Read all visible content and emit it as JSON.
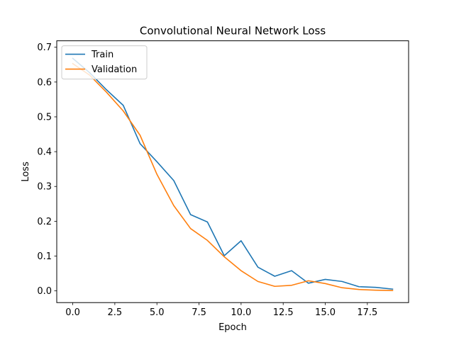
{
  "chart_data": {
    "type": "line",
    "title": "Convolutional Neural Network Loss",
    "xlabel": "Epoch",
    "ylabel": "Loss",
    "xlim": [
      -0.95,
      19.95
    ],
    "ylim": [
      -0.0337,
      0.7185
    ],
    "xticks": [
      0.0,
      2.5,
      5.0,
      7.5,
      10.0,
      12.5,
      15.0,
      17.5
    ],
    "xtick_labels": [
      "0.0",
      "2.5",
      "5.0",
      "7.5",
      "10.0",
      "12.5",
      "15.0",
      "17.5"
    ],
    "yticks": [
      0.0,
      0.1,
      0.2,
      0.3,
      0.4,
      0.5,
      0.6,
      0.7
    ],
    "ytick_labels": [
      "0.0",
      "0.1",
      "0.2",
      "0.3",
      "0.4",
      "0.5",
      "0.6",
      "0.7"
    ],
    "grid": false,
    "legend_position": "upper-left",
    "x": [
      0,
      1,
      2,
      3,
      4,
      5,
      6,
      7,
      8,
      9,
      10,
      11,
      12,
      13,
      14,
      15,
      16,
      17,
      18,
      19
    ],
    "series": [
      {
        "name": "Train",
        "color": "#1f77b4",
        "values": [
          0.668,
          0.627,
          0.578,
          0.533,
          0.423,
          0.371,
          0.317,
          0.219,
          0.198,
          0.101,
          0.144,
          0.068,
          0.042,
          0.058,
          0.022,
          0.033,
          0.027,
          0.012,
          0.01,
          0.005
        ]
      },
      {
        "name": "Validation",
        "color": "#ff7f0e",
        "values": [
          0.653,
          0.62,
          0.571,
          0.517,
          0.447,
          0.335,
          0.245,
          0.179,
          0.145,
          0.098,
          0.058,
          0.027,
          0.013,
          0.016,
          0.029,
          0.021,
          0.009,
          0.004,
          0.002,
          0.001
        ]
      }
    ]
  }
}
